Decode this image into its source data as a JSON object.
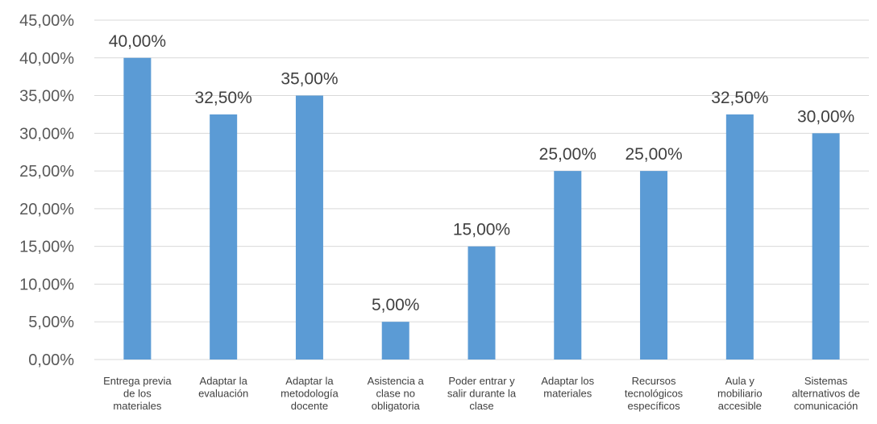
{
  "chart_data": {
    "type": "bar",
    "title": "",
    "xlabel": "",
    "ylabel": "",
    "ylim": [
      0,
      45
    ],
    "ytick_step": 5,
    "ytick_labels": [
      "0,00%",
      "5,00%",
      "10,00%",
      "15,00%",
      "20,00%",
      "25,00%",
      "30,00%",
      "35,00%",
      "40,00%",
      "45,00%"
    ],
    "grid": true,
    "legend": "none",
    "bar_color": "#5b9bd5",
    "grid_color": "#d9d9d9",
    "categories": [
      [
        "Entrega previa",
        "de los",
        "materiales"
      ],
      [
        "Adaptar la",
        "evaluación"
      ],
      [
        "Adaptar la",
        "metodología",
        "docente"
      ],
      [
        "Asistencia a",
        "clase no",
        "obligatoria"
      ],
      [
        "Poder entrar y",
        "salir durante la",
        "clase"
      ],
      [
        "Adaptar los",
        "materiales"
      ],
      [
        "Recursos",
        "tecnológicos",
        "específicos"
      ],
      [
        "Aula y",
        "mobiliario",
        "accesible"
      ],
      [
        "Sistemas",
        "alternativos de",
        "comunicación"
      ]
    ],
    "values": [
      40.0,
      32.5,
      35.0,
      5.0,
      15.0,
      25.0,
      25.0,
      32.5,
      30.0
    ],
    "data_labels": [
      "40,00%",
      "32,50%",
      "35,00%",
      "5,00%",
      "15,00%",
      "25,00%",
      "25,00%",
      "32,50%",
      "30,00%"
    ]
  }
}
